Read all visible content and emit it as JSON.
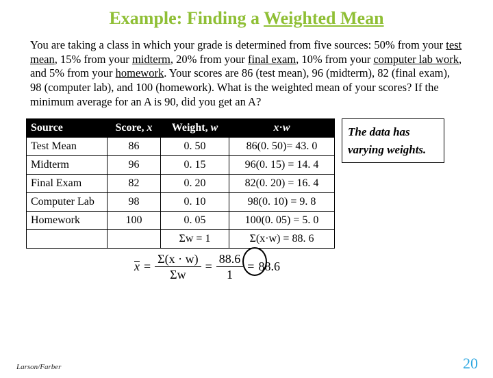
{
  "title": {
    "lead": "Example: Finding a ",
    "underlined": "Weighted Mean",
    "color": "#8fbf35"
  },
  "paragraph": {
    "parts": [
      {
        "t": "You are taking a class in which your grade is determined from five sources: 50% from your "
      },
      {
        "t": "test mean",
        "u": true
      },
      {
        "t": ", 15% from your "
      },
      {
        "t": "midterm",
        "u": true
      },
      {
        "t": ", 20% from your "
      },
      {
        "t": "final exam",
        "u": true
      },
      {
        "t": ", 10% from your "
      },
      {
        "t": "computer lab work",
        "u": true
      },
      {
        "t": ", and 5% from your "
      },
      {
        "t": "homework",
        "u": true
      },
      {
        "t": ". Your scores are 86 (test mean), 96 (midterm), 82 (final exam), 98 (computer lab), and 100 (homework). What is the weighted mean of your scores? If the minimum average for an A is 90, did you get an A?"
      }
    ]
  },
  "table": {
    "headers": {
      "source": "Source",
      "score_pre": "Score, ",
      "score_it": "x",
      "weight_pre": "Weight, ",
      "weight_it": "w",
      "xw_it1": "x",
      "xw_mid": "·",
      "xw_it2": "w"
    },
    "rows": [
      {
        "source": "Test Mean",
        "score": "86",
        "weight": "0. 50",
        "xw": "86(0. 50)= 43. 0"
      },
      {
        "source": "Midterm",
        "score": "96",
        "weight": "0. 15",
        "xw": "96(0. 15) = 14. 4"
      },
      {
        "source": "Final Exam",
        "score": "82",
        "weight": "0. 20",
        "xw": "82(0. 20) = 16. 4"
      },
      {
        "source": "Computer Lab",
        "score": "98",
        "weight": "0. 10",
        "xw": "98(0. 10) = 9. 8"
      },
      {
        "source": "Homework",
        "score": "100",
        "weight": "0. 05",
        "xw": "100(0. 05) = 5. 0"
      }
    ],
    "totals": {
      "weight_sum": "Σw = 1",
      "xw_sum": "Σ(x·w) = 88. 6"
    }
  },
  "sidebox": {
    "line1": "The data has",
    "line2": "varying weights."
  },
  "formula": {
    "lhs": "x",
    "eq": "=",
    "frac1": {
      "num": "Σ(x · w)",
      "den": "Σw"
    },
    "frac2": {
      "num": "88.6",
      "den": "1"
    },
    "result": "88.6"
  },
  "footer": {
    "left": "Larson/Farber",
    "page": "20",
    "page_color": "#2aa6e0"
  }
}
